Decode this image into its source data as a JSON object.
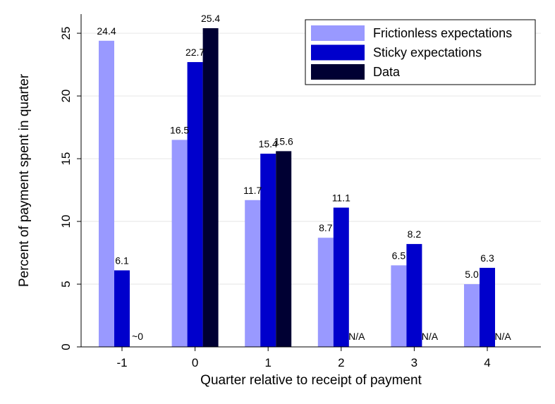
{
  "chart_data": {
    "type": "bar",
    "categories": [
      "-1",
      "0",
      "1",
      "2",
      "3",
      "4"
    ],
    "series": [
      {
        "name": "Frictionless expectations",
        "color": "#9999ff",
        "values": [
          24.4,
          16.5,
          11.7,
          8.7,
          6.5,
          5.0
        ],
        "labels": [
          "24.4",
          "16.5",
          "11.7",
          "8.7",
          "6.5",
          "5.0"
        ]
      },
      {
        "name": "Sticky expectations",
        "color": "#0000cc",
        "values": [
          6.1,
          22.7,
          15.4,
          11.1,
          8.2,
          6.3
        ],
        "labels": [
          "6.1",
          "22.7",
          "15.4",
          "11.1",
          "8.2",
          "6.3"
        ]
      },
      {
        "name": "Data",
        "color": "#000033",
        "values": [
          0,
          25.4,
          15.6,
          null,
          null,
          null
        ],
        "labels": [
          "~0",
          "25.4",
          "15.6",
          "N/A",
          "N/A",
          "N/A"
        ]
      }
    ],
    "xlabel": "Quarter relative to receipt of payment",
    "ylabel": "Percent of payment spent in quarter",
    "ylim": [
      0,
      25.4
    ],
    "yticks": [
      0,
      5,
      10,
      15,
      20,
      25
    ],
    "grid": true,
    "legend_position": "top-right"
  }
}
